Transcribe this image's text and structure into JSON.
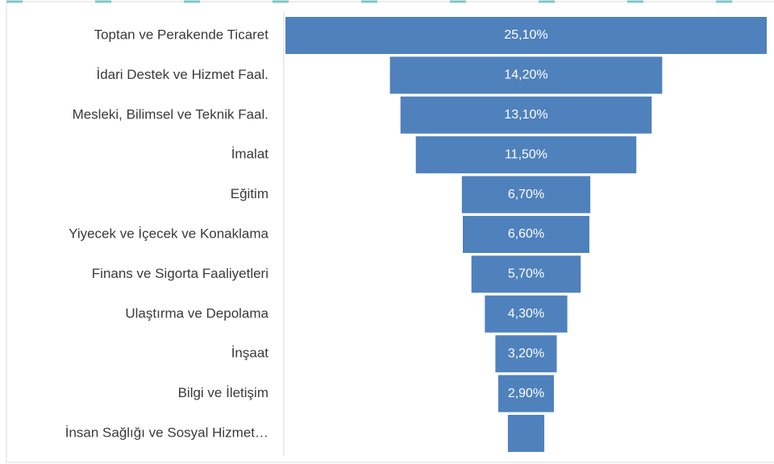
{
  "chart_data": {
    "type": "funnel",
    "categories": [
      "Toptan ve Perakende Ticaret",
      "İdari Destek ve Hizmet Faal.",
      "Mesleki, Bilimsel ve Teknik Faal.",
      "İmalat",
      "Eğitim",
      "Yiyecek ve İçecek ve Konaklama",
      "Finans ve Sigorta Faaliyetleri",
      "Ulaştırma ve Depolama",
      "İnşaat",
      "Bilgi ve İletişim",
      "İnsan Sağlığı ve Sosyal Hizmet…"
    ],
    "values": [
      25.1,
      14.2,
      13.1,
      11.5,
      6.7,
      6.6,
      5.7,
      4.3,
      3.2,
      2.9,
      1.9
    ],
    "value_labels": [
      "25,10%",
      "14,20%",
      "13,10%",
      "11,50%",
      "6,70%",
      "6,60%",
      "5,70%",
      "4,30%",
      "3,20%",
      "2,90%",
      null
    ],
    "color": "#4f81bd"
  }
}
